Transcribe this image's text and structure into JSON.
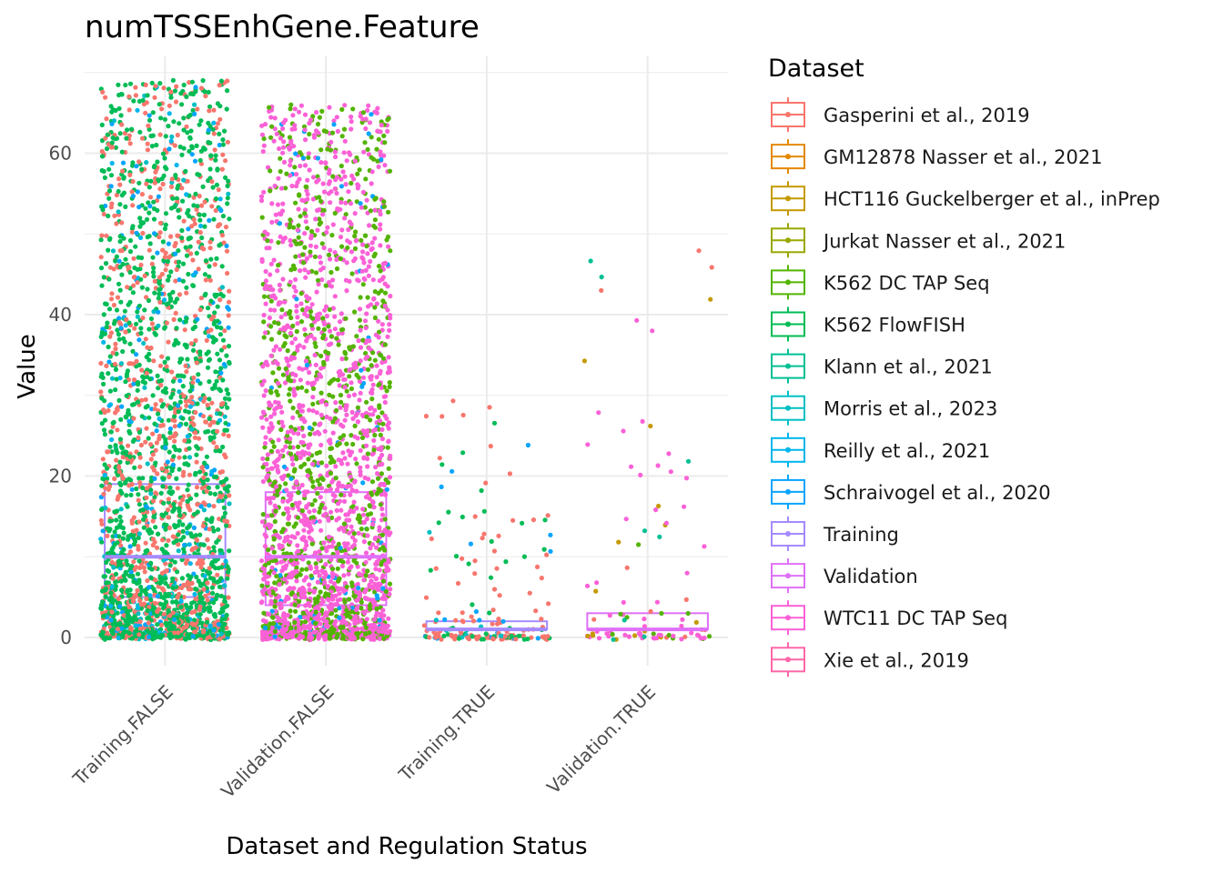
{
  "chart_data": {
    "type": "box+jitter",
    "title": "numTSSEnhGene.Feature",
    "xlabel": "Dataset and Regulation Status",
    "ylabel": "Value",
    "ylim": [
      -3.5,
      72
    ],
    "yticks": [
      0,
      20,
      40,
      60
    ],
    "grid": true,
    "legend_title": "Dataset",
    "legend_position": "right",
    "categories": [
      "Training.FALSE",
      "Validation.FALSE",
      "Training.TRUE",
      "Validation.TRUE"
    ],
    "boxes": [
      {
        "category": "Training.FALSE",
        "group": "Training",
        "q1": 5,
        "median": 10,
        "q3": 19
      },
      {
        "category": "Validation.FALSE",
        "group": "Validation",
        "q1": 4,
        "median": 10,
        "q3": 18
      },
      {
        "category": "Training.TRUE",
        "group": "Training",
        "q1": 1,
        "median": 1,
        "q3": 2
      },
      {
        "category": "Validation.TRUE",
        "group": "Validation",
        "q1": 1,
        "median": 1,
        "q3": 3
      }
    ],
    "jitter_points": [
      {
        "category": "Training.FALSE",
        "approx_count": 2600,
        "value_range": [
          0,
          69
        ],
        "dominant_datasets": [
          "K562 FlowFISH",
          "Gasperini et al., 2019",
          "Schraivogel et al., 2020"
        ]
      },
      {
        "category": "Validation.FALSE",
        "approx_count": 2600,
        "value_range": [
          0,
          66
        ],
        "dominant_datasets": [
          "WTC11 DC TAP Seq",
          "K562 DC TAP Seq"
        ]
      },
      {
        "category": "Training.TRUE",
        "approx_count": 180,
        "value_range": [
          0,
          30
        ],
        "dominant_datasets": [
          "Gasperini et al., 2019",
          "K562 FlowFISH"
        ]
      },
      {
        "category": "Validation.TRUE",
        "approx_count": 100,
        "value_range": [
          0,
          50
        ],
        "dominant_datasets": [
          "WTC11 DC TAP Seq",
          "HCT116 Guckelberger et al., inPrep"
        ]
      }
    ],
    "series": [
      {
        "name": "Gasperini et al., 2019",
        "color": "#F8766D"
      },
      {
        "name": "GM12878 Nasser et al., 2021",
        "color": "#E38900"
      },
      {
        "name": "HCT116 Guckelberger et al., inPrep",
        "color": "#C49A00"
      },
      {
        "name": "Jurkat Nasser et al., 2021",
        "color": "#99A800"
      },
      {
        "name": "K562 DC TAP Seq",
        "color": "#53B400"
      },
      {
        "name": "K562 FlowFISH",
        "color": "#00BC56"
      },
      {
        "name": "Klann et al., 2021",
        "color": "#00C094"
      },
      {
        "name": "Morris et al., 2023",
        "color": "#00BFC4"
      },
      {
        "name": "Reilly et al., 2021",
        "color": "#00B6EB"
      },
      {
        "name": "Schraivogel et al., 2020",
        "color": "#06A4FF"
      },
      {
        "name": "Training",
        "color": "#A58AFF"
      },
      {
        "name": "Validation",
        "color": "#DF70F8"
      },
      {
        "name": "WTC11 DC TAP Seq",
        "color": "#FB61D7"
      },
      {
        "name": "Xie et al., 2019",
        "color": "#FF66A8"
      }
    ]
  }
}
